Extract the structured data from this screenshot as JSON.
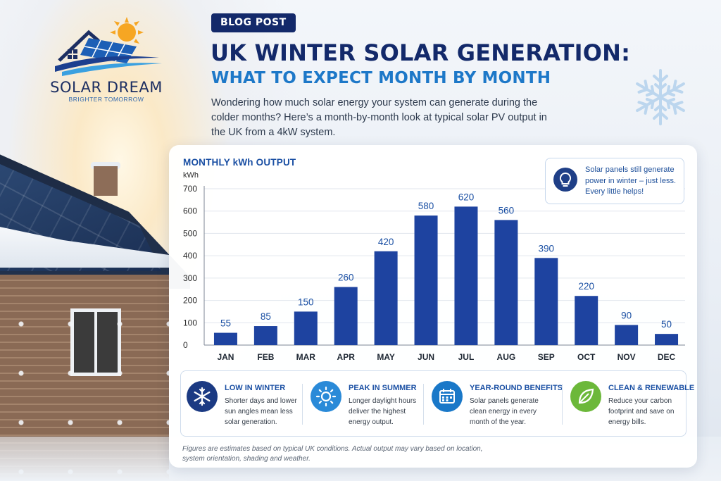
{
  "logo": {
    "name": "SOLAR DREAM",
    "tagline": "BRIGHTER TOMORROW"
  },
  "header": {
    "badge": "BLOG POST",
    "title": "UK WINTER SOLAR GENERATION:",
    "subtitle": "WHAT TO EXPECT MONTH BY MONTH",
    "intro": "Wondering how much solar energy your system can generate during the colder months? Here’s a month-by-month look at typical solar PV output in the UK from a 4kW system."
  },
  "tip": {
    "text": "Solar panels still generate power in winter – just less. Every little helps!",
    "icon": "lightbulb-icon"
  },
  "chart_data": {
    "type": "bar",
    "title": "MONTHLY kWh OUTPUT",
    "ylabel": "kWh",
    "xlabel": "",
    "categories": [
      "JAN",
      "FEB",
      "MAR",
      "APR",
      "MAY",
      "JUN",
      "JUL",
      "AUG",
      "SEP",
      "OCT",
      "NOV",
      "DEC"
    ],
    "values": [
      55,
      85,
      150,
      260,
      420,
      580,
      620,
      560,
      390,
      220,
      90,
      50
    ],
    "ylim": [
      0,
      700
    ],
    "yticks": [
      0,
      100,
      200,
      300,
      400,
      500,
      600,
      700
    ],
    "grid": true,
    "data_labels": true,
    "bar_color": "#1e43a0"
  },
  "info": [
    {
      "title": "LOW IN WINTER",
      "text": "Shorter days and lower sun angles mean less solar generation.",
      "icon": "snowflake-icon",
      "color": "#1b3a83"
    },
    {
      "title": "PEAK IN SUMMER",
      "text": "Longer daylight hours deliver the highest energy output.",
      "icon": "sun-icon",
      "color": "#2a8ad8"
    },
    {
      "title": "YEAR-ROUND BENEFITS",
      "text": "Solar panels generate clean energy in every month of the year.",
      "icon": "calendar-icon",
      "color": "#1a78c8"
    },
    {
      "title": "CLEAN & RENEWABLE",
      "text": "Reduce your carbon footprint and save on energy bills.",
      "icon": "leaf-icon",
      "color": "#6cb83a"
    }
  ],
  "footnote": "Figures are estimates based on typical UK conditions. Actual output may vary based on location, system orientation, shading and weather."
}
